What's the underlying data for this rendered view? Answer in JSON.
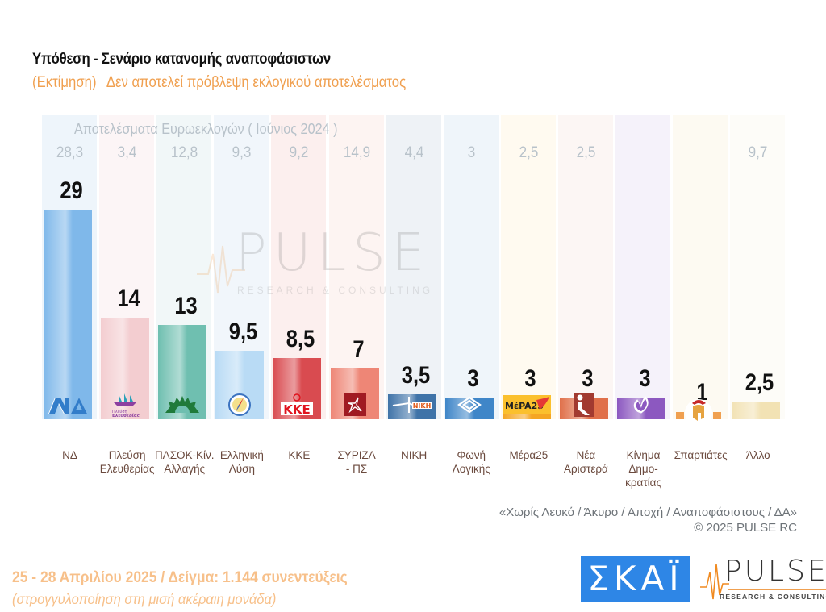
{
  "header": {
    "title": "Υπόθεση - Σενάριο κατανομής αναποφάσιστων",
    "subtitle_a": "(Εκτίμηση)",
    "subtitle_b": "Δεν αποτελεί πρόβλεψη εκλογικού αποτελέσματος"
  },
  "chart_data": {
    "type": "bar",
    "title": "Υπόθεση - Σενάριο κατανομής αναποφάσιστων",
    "xlabel": "",
    "ylabel": "",
    "ylim": [
      0,
      30
    ],
    "grid": false,
    "legend": "none",
    "comparison_caption": "Αποτελέσματα Ευρωεκλογών  ( Ιούνιος 2024 )",
    "categories": [
      "ΝΔ",
      "Πλεύση Ελευθερίας",
      "ΠΑΣΟΚ-Κίν. Αλλαγής",
      "Ελληνική Λύση",
      "ΚΚΕ",
      "ΣΥΡΙΖΑ - ΠΣ",
      "ΝΙΚΗ",
      "Φωνή Λογικής",
      "Μέρα25",
      "Νέα Αριστερά",
      "Κίνημα Δημο-κρατίας",
      "Σπαρτιάτες",
      "Άλλο"
    ],
    "category_lines": [
      [
        "ΝΔ"
      ],
      [
        "Πλεύση",
        "Ελευθερίας"
      ],
      [
        "ΠΑΣΟΚ-Κίν.",
        "Αλλαγής"
      ],
      [
        "Ελληνική",
        "Λύση"
      ],
      [
        "ΚΚΕ"
      ],
      [
        "ΣΥΡΙΖΑ",
        "- ΠΣ"
      ],
      [
        "ΝΙΚΗ"
      ],
      [
        "Φωνή",
        "Λογικής"
      ],
      [
        "Μέρα25"
      ],
      [
        "Νέα",
        "Αριστερά"
      ],
      [
        "Κίνημα",
        "Δημο-",
        "κρατίας"
      ],
      [
        "Σπαρτιάτες"
      ],
      [
        "Άλλο"
      ]
    ],
    "series": [
      {
        "name": "Εκτίμηση 2025",
        "values": [
          29,
          14,
          13,
          9.5,
          8.5,
          7,
          3.5,
          3,
          3,
          3,
          3,
          1,
          2.5
        ],
        "labels": [
          "29",
          "14",
          "13",
          "9,5",
          "8,5",
          "7",
          "3,5",
          "3",
          "3",
          "3",
          "3",
          "1",
          "2,5"
        ]
      },
      {
        "name": "Ευρωεκλογές Ιούνιος 2024",
        "values": [
          28.3,
          3.4,
          12.8,
          9.3,
          9.2,
          14.9,
          4.4,
          3,
          2.5,
          2.5,
          null,
          null,
          9.7
        ],
        "labels": [
          "28,3",
          "3,4",
          "12,8",
          "9,3",
          "9,2",
          "14,9",
          "4,4",
          "3",
          "2,5",
          "2,5",
          "",
          "",
          "9,7"
        ]
      }
    ],
    "bar_colors": [
      "#7fb8ea",
      "#f3cdd0",
      "#6fbfb0",
      "#b9dbf5",
      "#d94b50",
      "#ee8676",
      "#3f73a8",
      "#3f86c8",
      "#f5a623",
      "#e0704a",
      "#8c58c0",
      "#f0a050",
      "#f2e2b4"
    ],
    "stripe_colors": [
      "#eef5fb",
      "#fcf5f6",
      "#f1f7f8",
      "#f1f6fb",
      "#fcefee",
      "#fdf4f2",
      "#eef2f6",
      "#eff5fa",
      "#fffaf0",
      "#fcf6f4",
      "#f5f2fa",
      "#fdfaf2",
      "#fdfcf8"
    ],
    "logos": [
      "ND-logo",
      "plefsi-logo",
      "pasok-sun-logo",
      "compass-logo",
      "kke-logo",
      "syriza-star-logo",
      "niki-logo",
      "foni-logikis-logo",
      "mera25-logo",
      "nea-aristera-logo",
      "kinima-dimokratias-logo",
      "spartiates-helmet-logo",
      ""
    ]
  },
  "notes": {
    "excluded": "«Χωρίς Λευκό / Άκυρο / Αποχή / Αναποφάσιστους / ΔΑ»",
    "copyright": "©  2025  PULSE RC"
  },
  "footer": {
    "dates_sample": "25 - 28 Απριλίου 2025  /  Δείγμα:  1.144 συνεντεύξεις",
    "rounding": "(στρογγυλοποίηση στη μισή ακέραιη μονάδα)"
  },
  "branding": {
    "broadcaster": "ΣΚΑΪ",
    "pollster": "PULSE",
    "pollster_sub": "RESEARCH & CONSULTING",
    "watermark": "PULSE",
    "watermark_sub": "RESEARCH & CONSULTING"
  }
}
